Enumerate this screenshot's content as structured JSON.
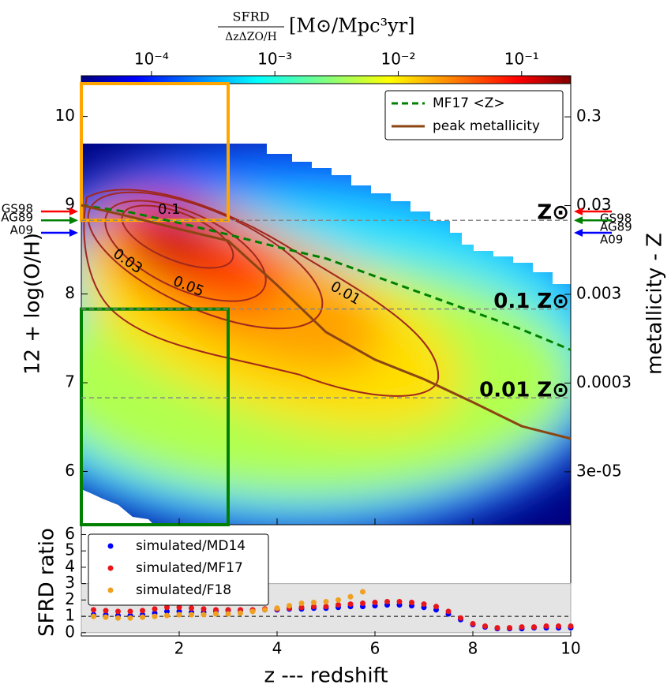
{
  "chart_data": [
    {
      "type": "line",
      "colorbar_label": {
        "numerator": "SFRD",
        "denominator": "ΔzΔZO/H",
        "unit": "[M⊙/Mpc³yr]"
      },
      "clim": [
        2.7e-05,
        0.25
      ],
      "cticks": [
        {
          "value": 0.0001,
          "label": "10⁻⁴"
        },
        {
          "value": 0.001,
          "label": "10⁻³"
        },
        {
          "value": 0.01,
          "label": "10⁻²"
        },
        {
          "value": 0.1,
          "label": "10⁻¹"
        }
      ],
      "ylabel": "12 + log(O/H)",
      "y2label": "metallicity - Z",
      "xlim": [
        0,
        10
      ],
      "ylim": [
        5.4,
        10.37
      ],
      "yticks": [
        6,
        7,
        8,
        9,
        10
      ],
      "y2lim": [
        7.6e-06,
        0.71
      ],
      "y2log": true,
      "y2ticks": [
        {
          "value": 3e-05,
          "label": "3e-05"
        },
        0.0003,
        0.003,
        0.03,
        0.3
      ],
      "legend": "upper right",
      "x": [
        0,
        1,
        2,
        3,
        4,
        5,
        6,
        7,
        8,
        9,
        10
      ],
      "series": [
        {
          "name": "MF17 <Z>",
          "color": "#008000",
          "dashed": true,
          "values": [
            9.0,
            8.92,
            8.8,
            8.67,
            8.53,
            8.4,
            8.2,
            8.0,
            7.8,
            7.6,
            7.37
          ]
        },
        {
          "name": "peak metallicity",
          "color": "#8b4513",
          "dashed": false,
          "values": [
            9.0,
            8.87,
            8.73,
            8.6,
            8.1,
            7.57,
            7.26,
            7.04,
            6.78,
            6.51,
            6.37
          ]
        }
      ],
      "reference_lines": [
        {
          "label": "Z⊙",
          "value": 8.83,
          "color": "#000000"
        },
        {
          "label": "0.1 Z⊙",
          "value": 7.83,
          "color": "#999999"
        },
        {
          "label": "0.01 Z⊙",
          "value": 6.83,
          "color": "#c8c8c8"
        }
      ],
      "solar_arrows": [
        {
          "label": "GS98",
          "color": "#ff0000",
          "value": 8.93
        },
        {
          "label": "AG89",
          "color": "#008000",
          "value": 8.83
        },
        {
          "label": "A09",
          "color": "#0000ff",
          "value": 8.69
        }
      ],
      "boxes": [
        {
          "color": "#ffa500",
          "x": [
            0,
            3
          ],
          "y": [
            8.83,
            10.37
          ]
        },
        {
          "color": "#008000",
          "x": [
            0,
            3
          ],
          "y": [
            5.4,
            7.83
          ]
        }
      ],
      "contour_labels": [
        0.1,
        0.05,
        0.03,
        0.01
      ]
    },
    {
      "type": "scatter",
      "ylabel": "SFRD ratio",
      "xlabel": "z --- redshift",
      "xlim": [
        0,
        10
      ],
      "xticks": [
        2,
        4,
        6,
        8,
        10
      ],
      "ylim": [
        -0.2,
        6.6
      ],
      "yticks": [
        0,
        1,
        2,
        3,
        4,
        5,
        6
      ],
      "band": [
        0,
        3
      ],
      "reference_line": 1,
      "legend": "upper left",
      "series": [
        {
          "name": "simulated/MD14",
          "color": "#0000ff",
          "x": [
            0.25,
            0.5,
            0.75,
            1,
            1.25,
            1.5,
            1.75,
            2,
            2.25,
            2.5,
            2.75,
            3,
            3.25,
            3.5,
            3.75,
            4,
            4.25,
            4.5,
            4.75,
            5,
            5.25,
            5.5,
            5.75,
            6,
            6.25,
            6.5,
            6.75,
            7,
            7.25,
            7.5,
            7.75,
            8,
            8.25,
            8.5,
            8.75,
            9,
            9.25,
            9.5,
            9.75,
            10
          ],
          "values": [
            1.1,
            1.1,
            1.05,
            1.05,
            1.1,
            1.2,
            1.3,
            1.3,
            1.25,
            1.25,
            1.3,
            1.35,
            1.35,
            1.35,
            1.4,
            1.4,
            1.45,
            1.45,
            1.5,
            1.5,
            1.55,
            1.6,
            1.6,
            1.65,
            1.7,
            1.7,
            1.65,
            1.55,
            1.4,
            1.15,
            0.8,
            0.5,
            0.35,
            0.25,
            0.25,
            0.25,
            0.3,
            0.3,
            0.3,
            0.3
          ]
        },
        {
          "name": "simulated/MF17",
          "color": "#e8161b",
          "x": [
            0.25,
            0.5,
            0.75,
            1,
            1.25,
            1.5,
            1.75,
            2,
            2.25,
            2.5,
            2.75,
            3,
            3.25,
            3.5,
            3.75,
            4,
            4.25,
            4.5,
            4.75,
            5,
            5.25,
            5.5,
            5.75,
            6,
            6.25,
            6.5,
            6.75,
            7,
            7.25,
            7.5,
            7.75,
            8,
            8.25,
            8.5,
            8.75,
            9,
            9.25,
            9.5,
            9.75,
            10
          ],
          "values": [
            1.4,
            1.35,
            1.3,
            1.3,
            1.35,
            1.45,
            1.55,
            1.55,
            1.5,
            1.45,
            1.4,
            1.4,
            1.4,
            1.4,
            1.45,
            1.45,
            1.5,
            1.55,
            1.6,
            1.6,
            1.7,
            1.75,
            1.8,
            1.85,
            1.9,
            1.9,
            1.85,
            1.75,
            1.6,
            1.3,
            0.9,
            0.55,
            0.4,
            0.3,
            0.3,
            0.35,
            0.35,
            0.4,
            0.4,
            0.4
          ]
        },
        {
          "name": "simulated/F18",
          "color": "#f0a020",
          "x": [
            0.25,
            0.5,
            0.75,
            1,
            1.25,
            1.5,
            1.75,
            2,
            2.25,
            2.5,
            2.75,
            3,
            3.25,
            3.5,
            3.75,
            4,
            4.25,
            4.5,
            4.75,
            5,
            5.25,
            5.5,
            5.75
          ],
          "values": [
            1.0,
            0.95,
            0.9,
            0.9,
            0.95,
            1.0,
            1.05,
            1.1,
            1.1,
            1.1,
            1.15,
            1.15,
            1.2,
            1.3,
            1.4,
            1.5,
            1.65,
            1.8,
            1.85,
            1.9,
            2.0,
            2.2,
            2.5
          ]
        }
      ]
    }
  ]
}
